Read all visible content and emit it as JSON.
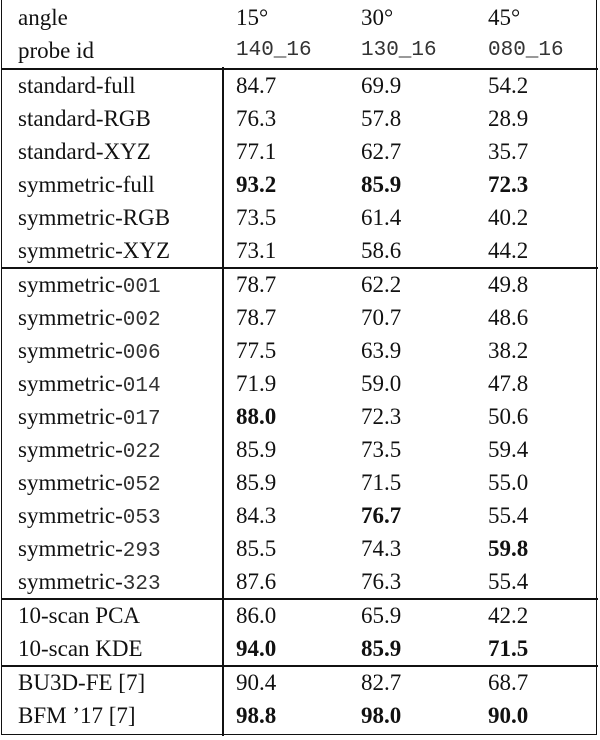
{
  "header": [
    {
      "cells": [
        "angle",
        "15°",
        "30°",
        "45°"
      ],
      "mono": [
        false,
        false,
        false,
        false
      ]
    },
    {
      "cells": [
        "probe id",
        "140_16",
        "130_16",
        "080_16"
      ],
      "mono": [
        false,
        true,
        true,
        true
      ]
    }
  ],
  "groups": [
    {
      "rows": [
        {
          "label": "standard-full",
          "values": [
            "84.7",
            "69.9",
            "54.2"
          ],
          "bold": [
            false,
            false,
            false
          ]
        },
        {
          "label": "standard-RGB",
          "values": [
            "76.3",
            "57.8",
            "28.9"
          ],
          "bold": [
            false,
            false,
            false
          ]
        },
        {
          "label": "standard-XYZ",
          "values": [
            "77.1",
            "62.7",
            "35.7"
          ],
          "bold": [
            false,
            false,
            false
          ]
        },
        {
          "label": "symmetric-full",
          "values": [
            "93.2",
            "85.9",
            "72.3"
          ],
          "bold": [
            true,
            true,
            true
          ]
        },
        {
          "label": "symmetric-RGB",
          "values": [
            "73.5",
            "61.4",
            "40.2"
          ],
          "bold": [
            false,
            false,
            false
          ]
        },
        {
          "label": "symmetric-XYZ",
          "values": [
            "73.1",
            "58.6",
            "44.2"
          ],
          "bold": [
            false,
            false,
            false
          ]
        }
      ]
    },
    {
      "rows": [
        {
          "label": "symmetric-",
          "code": "001",
          "values": [
            "78.7",
            "62.2",
            "49.8"
          ],
          "bold": [
            false,
            false,
            false
          ]
        },
        {
          "label": "symmetric-",
          "code": "002",
          "values": [
            "78.7",
            "70.7",
            "48.6"
          ],
          "bold": [
            false,
            false,
            false
          ]
        },
        {
          "label": "symmetric-",
          "code": "006",
          "values": [
            "77.5",
            "63.9",
            "38.2"
          ],
          "bold": [
            false,
            false,
            false
          ]
        },
        {
          "label": "symmetric-",
          "code": "014",
          "values": [
            "71.9",
            "59.0",
            "47.8"
          ],
          "bold": [
            false,
            false,
            false
          ]
        },
        {
          "label": "symmetric-",
          "code": "017",
          "values": [
            "88.0",
            "72.3",
            "50.6"
          ],
          "bold": [
            true,
            false,
            false
          ]
        },
        {
          "label": "symmetric-",
          "code": "022",
          "values": [
            "85.9",
            "73.5",
            "59.4"
          ],
          "bold": [
            false,
            false,
            false
          ]
        },
        {
          "label": "symmetric-",
          "code": "052",
          "values": [
            "85.9",
            "71.5",
            "55.0"
          ],
          "bold": [
            false,
            false,
            false
          ]
        },
        {
          "label": "symmetric-",
          "code": "053",
          "values": [
            "84.3",
            "76.7",
            "55.4"
          ],
          "bold": [
            false,
            true,
            false
          ]
        },
        {
          "label": "symmetric-",
          "code": "293",
          "values": [
            "85.5",
            "74.3",
            "59.8"
          ],
          "bold": [
            false,
            false,
            true
          ]
        },
        {
          "label": "symmetric-",
          "code": "323",
          "values": [
            "87.6",
            "76.3",
            "55.4"
          ],
          "bold": [
            false,
            false,
            false
          ]
        }
      ]
    },
    {
      "rows": [
        {
          "label": "10-scan PCA",
          "values": [
            "86.0",
            "65.9",
            "42.2"
          ],
          "bold": [
            false,
            false,
            false
          ]
        },
        {
          "label": "10-scan KDE",
          "values": [
            "94.0",
            "85.9",
            "71.5"
          ],
          "bold": [
            true,
            true,
            true
          ]
        }
      ]
    },
    {
      "rows": [
        {
          "label": "BU3D-FE [7]",
          "values": [
            "90.4",
            "82.7",
            "68.7"
          ],
          "bold": [
            false,
            false,
            false
          ]
        },
        {
          "label": "BFM ’17 [7]",
          "values": [
            "98.8",
            "98.0",
            "90.0"
          ],
          "bold": [
            true,
            true,
            true
          ]
        }
      ]
    }
  ]
}
